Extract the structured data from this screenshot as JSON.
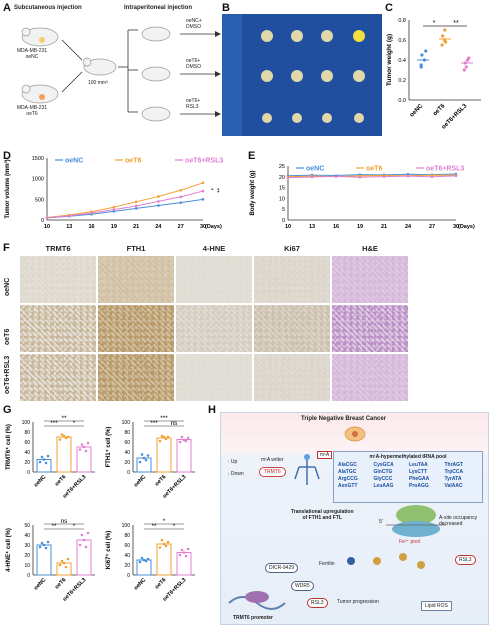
{
  "panels": {
    "A": "A",
    "B": "B",
    "C": "C",
    "D": "D",
    "E": "E",
    "F": "F",
    "G": "G",
    "H": "H"
  },
  "panelA": {
    "subcutaneous": "Subcutaneous injection",
    "intraperitoneal": "Intraperitoneal injection",
    "cell1": "MDA-MB-231",
    "cell1_sub": "oeNC",
    "cell2": "MDA-MB-231",
    "cell2_sub": "oeT6",
    "volume": "100 mm³",
    "group1a": "oeNC+",
    "group1b": "DMSO",
    "group2a": "oeT6+",
    "group2b": "DMSO",
    "group3a": "oeT6+",
    "group3b": "RSL3"
  },
  "panelC": {
    "chart_data": {
      "type": "scatter",
      "categories": [
        "oeNC",
        "oeT6",
        "oeT6+RSL3"
      ],
      "ylabel": "Tumor weight (g)",
      "ylim": [
        0,
        0.8
      ],
      "yticks": [
        "0.0",
        "0.2",
        "0.4",
        "0.6",
        "0.8"
      ],
      "means": [
        0.4,
        0.61,
        0.37
      ],
      "points": [
        [
          0.49,
          0.4,
          0.33,
          0.45,
          0.35
        ],
        [
          0.58,
          0.64,
          0.7,
          0.55,
          0.6
        ],
        [
          0.42,
          0.3,
          0.37,
          0.4,
          0.33
        ]
      ],
      "sig": [
        "*",
        "**"
      ],
      "colors": [
        "#4a8fd8",
        "#f0a030",
        "#e080d0"
      ]
    }
  },
  "panelD": {
    "chart_data": {
      "type": "line",
      "x": [
        10,
        13,
        16,
        19,
        21,
        24,
        27,
        30
      ],
      "xlabel": "(Days)",
      "ylabel": "Tumor volume (mm³)",
      "ylim": [
        0,
        1500
      ],
      "yticks": [
        "0",
        "500",
        "1000",
        "1500"
      ],
      "series": [
        {
          "name": "oeNC",
          "values": [
            50,
            90,
            140,
            210,
            280,
            350,
            420,
            500
          ],
          "color": "#4a8fd8"
        },
        {
          "name": "oeT6",
          "values": [
            60,
            120,
            200,
            310,
            440,
            570,
            720,
            900
          ],
          "color": "#f0a030"
        },
        {
          "name": "oeT6+RSL3",
          "values": [
            55,
            100,
            170,
            250,
            340,
            450,
            560,
            700
          ],
          "color": "#e080d0"
        }
      ],
      "sig": [
        "*",
        "**"
      ]
    }
  },
  "panelE": {
    "chart_data": {
      "type": "line",
      "x": [
        10,
        13,
        16,
        19,
        21,
        24,
        27,
        30
      ],
      "xlabel": "(Days)",
      "ylabel": "Body weight (g)",
      "ylim": [
        0,
        25
      ],
      "yticks": [
        "0",
        "5",
        "10",
        "15",
        "20",
        "25"
      ],
      "series": [
        {
          "name": "oeNC",
          "values": [
            20.5,
            20.8,
            20.6,
            21.0,
            20.9,
            21.2,
            21.0,
            21.3
          ],
          "color": "#4a8fd8"
        },
        {
          "name": "oeT6",
          "values": [
            20.0,
            20.3,
            20.1,
            20.4,
            20.6,
            20.5,
            20.8,
            20.7
          ],
          "color": "#f0a030"
        },
        {
          "name": "oeT6+RSL3",
          "values": [
            19.6,
            19.9,
            20.2,
            19.8,
            20.1,
            20.3,
            20.0,
            20.4
          ],
          "color": "#e080d0"
        }
      ]
    }
  },
  "panelF": {
    "columns": [
      "TRMT6",
      "FTH1",
      "4-HNE",
      "Ki67",
      "H&E"
    ],
    "rows": [
      "oeNC",
      "oeT6",
      "oeT6+RSL3"
    ]
  },
  "panelG": {
    "charts": [
      {
        "ylabel": "TRMT6⁺ cell (%)",
        "ylim": [
          0,
          100
        ],
        "yticks": [
          "0",
          "20",
          "40",
          "60",
          "80",
          "100"
        ],
        "categories": [
          "oeNC",
          "oeT6",
          "oeT6+RSL3"
        ],
        "values": [
          25,
          70,
          50
        ],
        "points": [
          [
            20,
            30,
            25,
            18,
            32
          ],
          [
            65,
            75,
            72,
            68,
            70
          ],
          [
            45,
            55,
            50,
            42,
            58
          ]
        ],
        "sig": [
          "**",
          "***",
          "*"
        ]
      },
      {
        "ylabel": "FTH1⁺ cell (%)",
        "ylim": [
          0,
          100
        ],
        "yticks": [
          "0",
          "20",
          "40",
          "60",
          "80",
          "100"
        ],
        "categories": [
          "oeNC",
          "oeT6",
          "oeT6+RSL3"
        ],
        "values": [
          28,
          68,
          65
        ],
        "points": [
          [
            20,
            35,
            28,
            24,
            33
          ],
          [
            62,
            72,
            70,
            66,
            70
          ],
          [
            60,
            70,
            64,
            62,
            68
          ]
        ],
        "sig": [
          "***",
          "***",
          "ns"
        ]
      },
      {
        "ylabel": "4-HNE⁺ cell (%)",
        "ylim": [
          0,
          50
        ],
        "yticks": [
          "0",
          "10",
          "20",
          "30",
          "40",
          "50"
        ],
        "categories": [
          "oeNC",
          "oeT6",
          "oeT6+RSL3"
        ],
        "values": [
          30,
          12,
          35
        ],
        "points": [
          [
            28,
            32,
            30,
            27,
            33
          ],
          [
            10,
            14,
            12,
            8,
            16
          ],
          [
            30,
            40,
            35,
            28,
            42
          ]
        ],
        "sig": [
          "ns",
          "**",
          "*"
        ]
      },
      {
        "ylabel": "Ki67⁺ cell (%)",
        "ylim": [
          0,
          100
        ],
        "yticks": [
          "0",
          "20",
          "40",
          "60",
          "80",
          "100"
        ],
        "categories": [
          "oeNC",
          "oeT6",
          "oeT6+RSL3"
        ],
        "values": [
          30,
          62,
          45
        ],
        "points": [
          [
            26,
            34,
            30,
            28,
            32
          ],
          [
            55,
            70,
            62,
            58,
            66
          ],
          [
            40,
            50,
            45,
            38,
            52
          ]
        ],
        "sig": [
          "*",
          "**",
          "*"
        ]
      }
    ],
    "colors": [
      "#4a8fd8",
      "#f0a030",
      "#e080d0"
    ]
  },
  "panelH": {
    "title": "Triple Negative Breast Cancer",
    "pool_title": "m¹A-hypermethylated tRNA pool",
    "trnas": [
      "AlaCGC",
      "CysGCA",
      "LeuTAA",
      "ThrAGT",
      "AlaTGC",
      "GlnCTG",
      "LysCTT",
      "TrpCCA",
      "ArgCCG",
      "GlyCCC",
      "PheGAA",
      "TyrATA",
      "AsnGTT",
      "LeuAAG",
      "ProAGG",
      "ValAAC"
    ],
    "up": "Up",
    "down": "Down",
    "writer": "m¹A writer",
    "trmt6": "TRMT6",
    "m1a": "m¹A",
    "translational": "Translational upregulation",
    "of_fth1": "of FTH1 and FTL",
    "asite": "A-site occupancy",
    "decreased": "decreased",
    "five_prime": "5'",
    "ferritin": "Ferritin",
    "fe_pool": "Fe²⁺ pool",
    "rsl3": "RSL3",
    "dicr": "DICR-9429",
    "wdr5": "WDR5",
    "rsl3b": "RSL3",
    "tumor": "Tumor progression",
    "lipid": "Lipid ROS",
    "promoter": "TRMT6 promoter"
  }
}
